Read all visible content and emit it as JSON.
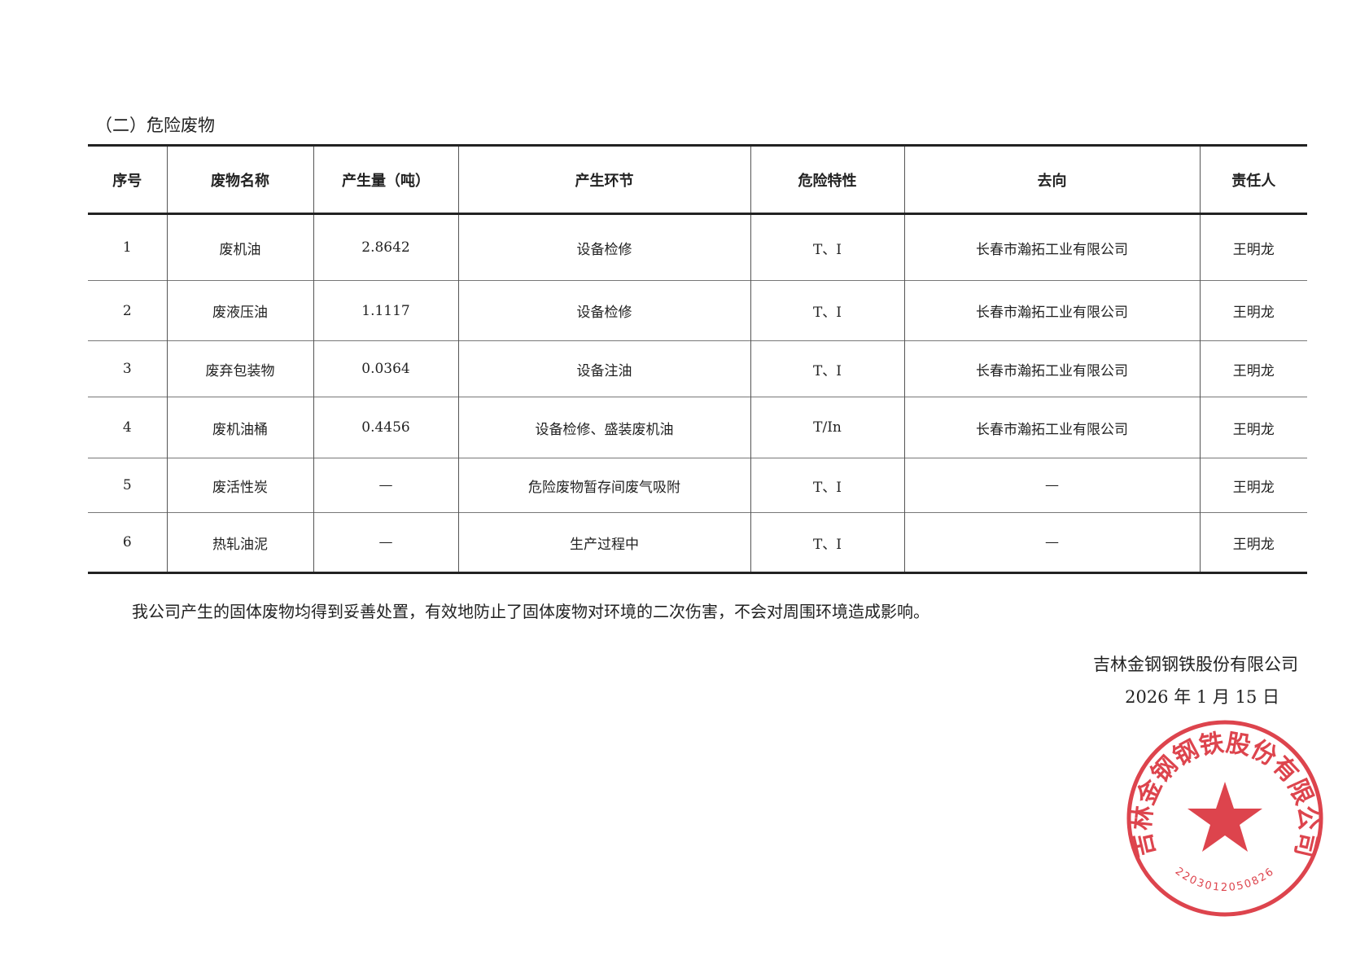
{
  "section_title": "（二）危险废物",
  "table": {
    "headers": [
      "序号",
      "废物名称",
      "产生量（吨）",
      "产生环节",
      "危险特性",
      "去向",
      "责任人"
    ],
    "rows": [
      [
        "1",
        "废机油",
        "2.8642",
        "设备检修",
        "T、I",
        "长春市瀚拓工业有限公司",
        "王明龙"
      ],
      [
        "2",
        "废液压油",
        "1.1117",
        "设备检修",
        "T、I",
        "长春市瀚拓工业有限公司",
        "王明龙"
      ],
      [
        "3",
        "废弃包装物",
        "0.0364",
        "设备注油",
        "T、I",
        "长春市瀚拓工业有限公司",
        "王明龙"
      ],
      [
        "4",
        "废机油桶",
        "0.4456",
        "设备检修、盛装废机油",
        "T/In",
        "长春市瀚拓工业有限公司",
        "王明龙"
      ],
      [
        "5",
        "废活性炭",
        "—",
        "危险废物暂存间废气吸附",
        "T、I",
        "—",
        "王明龙"
      ],
      [
        "6",
        "热轧油泥",
        "—",
        "生产过程中",
        "T、I",
        "—",
        "王明龙"
      ]
    ]
  },
  "note": "我公司产生的固体废物均得到妥善处置，有效地防止了固体废物对环境的二次伤害，不会对周围环境造成影响。",
  "signature": {
    "company": "吉林金钢钢铁股份有限公司",
    "date": "2026 年 1 月 15 日"
  },
  "stamp": {
    "text": "吉林金钢钢铁股份有限公司",
    "number": "2203012050826",
    "color": "#d8242f"
  }
}
